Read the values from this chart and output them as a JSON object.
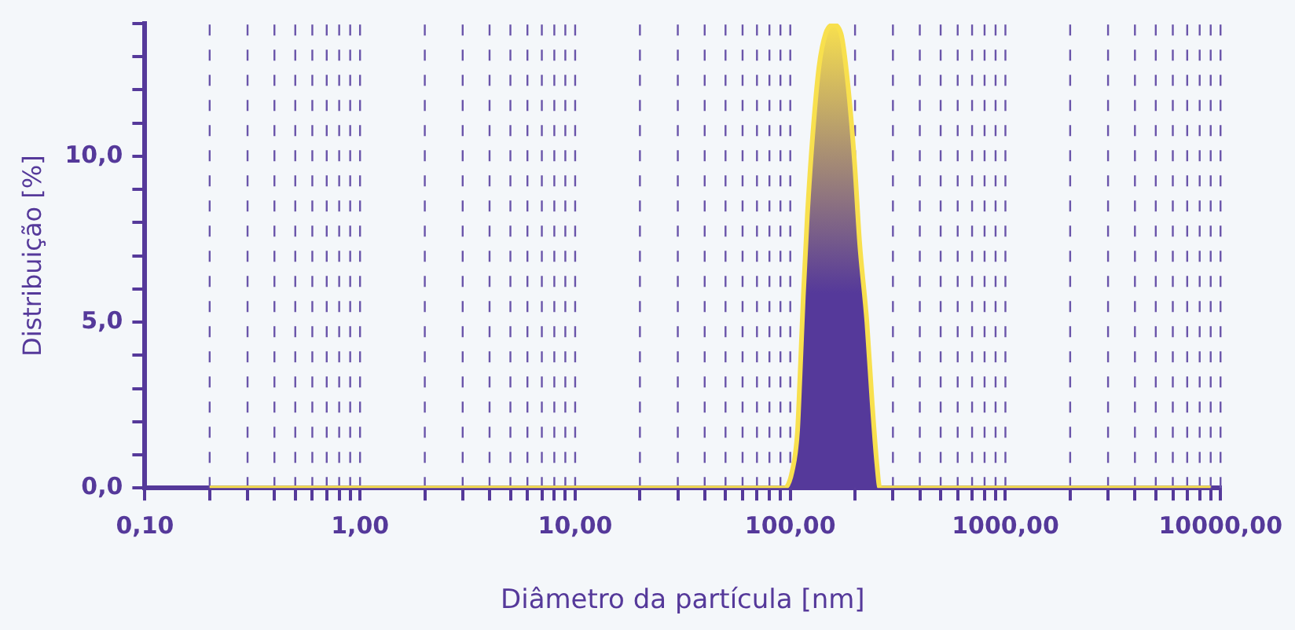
{
  "chart_data": {
    "type": "area",
    "xlabel": "Diâmetro da partícula [nm]",
    "ylabel": "Distribuição [%]",
    "log": "x",
    "grid": "x",
    "legend": false,
    "xlim": [
      0.1,
      10000
    ],
    "xticks": [
      {
        "value": 0.1,
        "label": "0,10"
      },
      {
        "value": 0.2,
        "label": null
      },
      {
        "value": 0.3,
        "label": null
      },
      {
        "value": 0.4,
        "label": null
      },
      {
        "value": 0.5,
        "label": null
      },
      {
        "value": 0.6,
        "label": null
      },
      {
        "value": 0.7,
        "label": null
      },
      {
        "value": 0.8,
        "label": null
      },
      {
        "value": 0.9,
        "label": null
      },
      {
        "value": 1,
        "label": "1,00"
      },
      {
        "value": 2,
        "label": null
      },
      {
        "value": 3,
        "label": null
      },
      {
        "value": 4,
        "label": null
      },
      {
        "value": 5,
        "label": null
      },
      {
        "value": 6,
        "label": null
      },
      {
        "value": 7,
        "label": null
      },
      {
        "value": 8,
        "label": null
      },
      {
        "value": 9,
        "label": null
      },
      {
        "value": 10,
        "label": "10,00"
      },
      {
        "value": 20,
        "label": null
      },
      {
        "value": 30,
        "label": null
      },
      {
        "value": 40,
        "label": null
      },
      {
        "value": 50,
        "label": null
      },
      {
        "value": 60,
        "label": null
      },
      {
        "value": 70,
        "label": null
      },
      {
        "value": 80,
        "label": null
      },
      {
        "value": 90,
        "label": null
      },
      {
        "value": 100,
        "label": "100,00"
      },
      {
        "value": 200,
        "label": null
      },
      {
        "value": 300,
        "label": null
      },
      {
        "value": 400,
        "label": null
      },
      {
        "value": 500,
        "label": null
      },
      {
        "value": 600,
        "label": null
      },
      {
        "value": 700,
        "label": null
      },
      {
        "value": 800,
        "label": null
      },
      {
        "value": 900,
        "label": null
      },
      {
        "value": 1000,
        "label": "1000,00"
      },
      {
        "value": 2000,
        "label": null
      },
      {
        "value": 3000,
        "label": null
      },
      {
        "value": 4000,
        "label": null
      },
      {
        "value": 5000,
        "label": null
      },
      {
        "value": 6000,
        "label": null
      },
      {
        "value": 7000,
        "label": null
      },
      {
        "value": 8000,
        "label": null
      },
      {
        "value": 9000,
        "label": null
      },
      {
        "value": 10000,
        "label": "10000,00"
      }
    ],
    "ylim": [
      0,
      14
    ],
    "yticks": [
      {
        "value": 0,
        "label": "0,0"
      },
      {
        "value": 1,
        "label": null
      },
      {
        "value": 2,
        "label": null
      },
      {
        "value": 3,
        "label": null
      },
      {
        "value": 4,
        "label": null
      },
      {
        "value": 5,
        "label": "5,0"
      },
      {
        "value": 6,
        "label": null
      },
      {
        "value": 7,
        "label": null
      },
      {
        "value": 8,
        "label": null
      },
      {
        "value": 9,
        "label": null
      },
      {
        "value": 10,
        "label": "10,0"
      },
      {
        "value": 11,
        "label": null
      },
      {
        "value": 12,
        "label": null
      },
      {
        "value": 13,
        "label": null
      },
      {
        "value": 14,
        "label": null
      }
    ],
    "series": [
      {
        "color": "#f8e04e",
        "x": [
          0.2,
          94,
          102,
          108,
          111,
          115,
          120,
          127,
          136,
          146,
          158,
          172,
          185,
          199,
          210,
          227,
          240,
          252,
          261,
          9000
        ],
        "values": [
          0,
          0,
          0.5,
          1.7,
          3.4,
          5.8,
          8.2,
          10.6,
          12.7,
          13.7,
          13.96,
          13.7,
          12.2,
          9.8,
          7.4,
          5.0,
          2.6,
          0.8,
          0,
          0
        ]
      }
    ]
  }
}
